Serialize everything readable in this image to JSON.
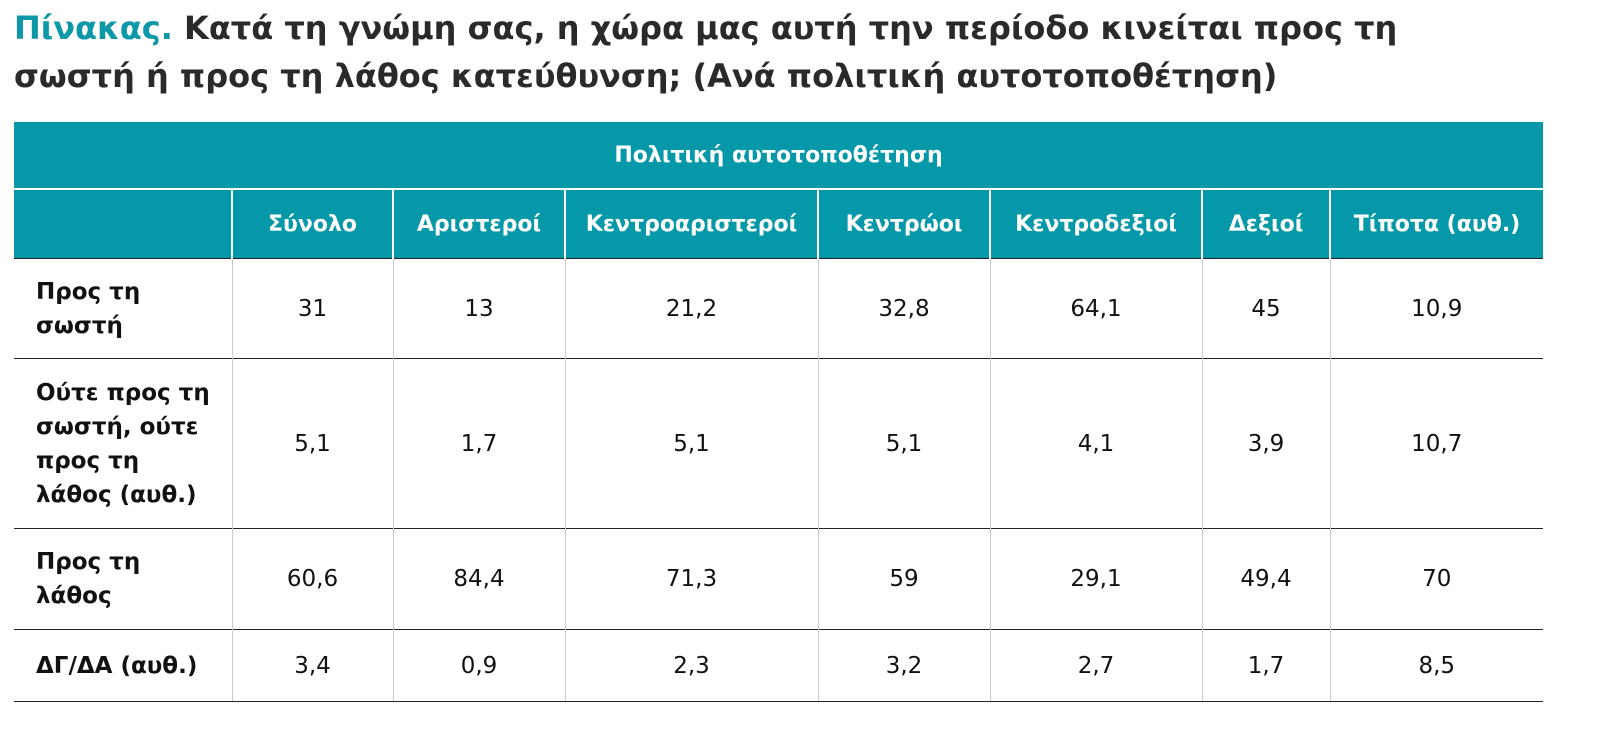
{
  "title": {
    "label": "Πίνακας.",
    "text": "Κατά τη γνώμη σας, η χώρα μας αυτή την περίοδο κινείται προς τη σωστή ή προς τη λάθος κατεύθυνση; (Ανά πολιτική αυτοτοποθέτηση)"
  },
  "table": {
    "group_header": "Πολιτική αυτοτοποθέτηση",
    "columns": [
      "Σύνολο",
      "Αριστεροί",
      "Κεντροαριστεροί",
      "Κεντρώοι",
      "Κεντροδεξιοί",
      "Δεξιοί",
      "Τίποτα (αυθ.)"
    ],
    "rows": [
      {
        "label": "Προς τη σωστή",
        "values": [
          "31",
          "13",
          "21,2",
          "32,8",
          "64,1",
          "45",
          "10,9"
        ]
      },
      {
        "label": "Ούτε προς τη σωστή, ούτε προς τη λάθος (αυθ.)",
        "values": [
          "5,1",
          "1,7",
          "5,1",
          "5,1",
          "4,1",
          "3,9",
          "10,7"
        ]
      },
      {
        "label": "Προς τη λάθος",
        "values": [
          "60,6",
          "84,4",
          "71,3",
          "59",
          "29,1",
          "49,4",
          "70"
        ]
      },
      {
        "label": "ΔΓ/ΔΑ (αυθ.)",
        "values": [
          "3,4",
          "0,9",
          "2,3",
          "3,2",
          "2,7",
          "1,7",
          "8,5"
        ]
      }
    ]
  }
}
